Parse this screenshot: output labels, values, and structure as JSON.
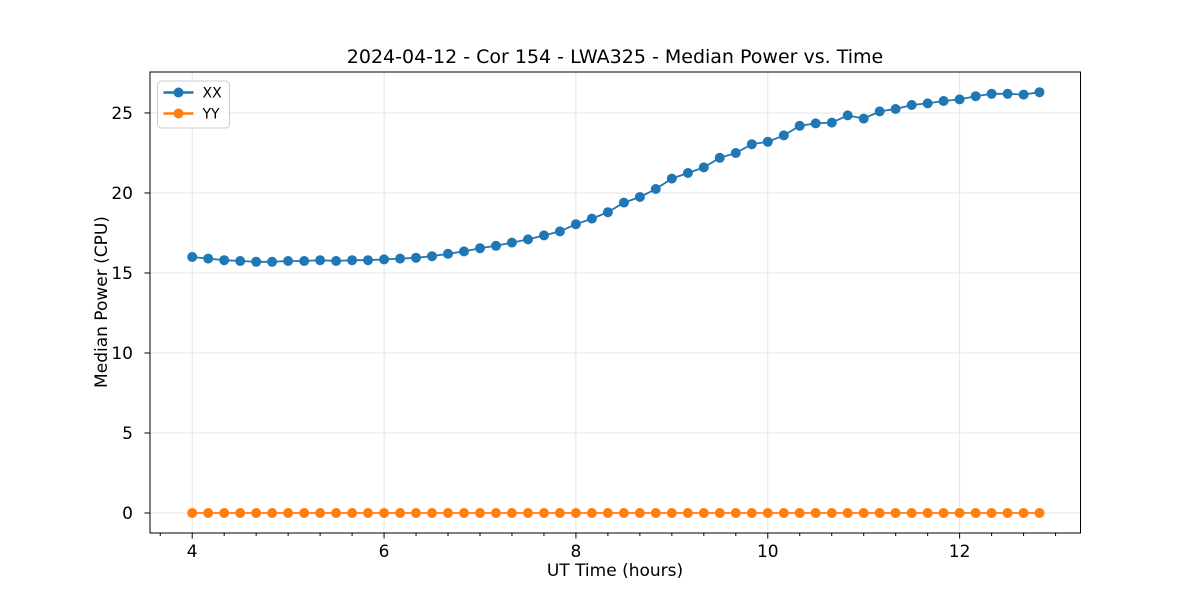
{
  "window": {
    "background": "#ffffff"
  },
  "chart_data": {
    "type": "line",
    "title": "2024-04-12 - Cor 154 - LWA325 - Median Power vs. Time",
    "xlabel": "UT Time (hours)",
    "ylabel": "Median Power (CPU)",
    "xlim": [
      3.56,
      13.26
    ],
    "ylim": [
      -1.25,
      27.56
    ],
    "x_ticks": [
      4,
      6,
      8,
      10,
      12
    ],
    "x_minor_tick_step": 0.33333,
    "y_ticks": [
      0,
      5,
      10,
      15,
      20,
      25
    ],
    "grid": true,
    "legend": {
      "position": "upper left",
      "entries": [
        "XX",
        "YY"
      ]
    },
    "x": [
      4.0,
      4.167,
      4.333,
      4.5,
      4.667,
      4.833,
      5.0,
      5.167,
      5.333,
      5.5,
      5.667,
      5.833,
      6.0,
      6.167,
      6.333,
      6.5,
      6.667,
      6.833,
      7.0,
      7.167,
      7.333,
      7.5,
      7.667,
      7.833,
      8.0,
      8.167,
      8.333,
      8.5,
      8.667,
      8.833,
      9.0,
      9.167,
      9.333,
      9.5,
      9.667,
      9.833,
      10.0,
      10.167,
      10.333,
      10.5,
      10.667,
      10.833,
      11.0,
      11.167,
      11.333,
      11.5,
      11.667,
      11.833,
      12.0,
      12.167,
      12.333,
      12.5,
      12.667,
      12.833
    ],
    "series": [
      {
        "name": "XX",
        "color": "#1f77b4",
        "values": [
          16.0,
          15.9,
          15.8,
          15.75,
          15.7,
          15.7,
          15.75,
          15.75,
          15.8,
          15.75,
          15.8,
          15.8,
          15.85,
          15.9,
          15.95,
          16.05,
          16.2,
          16.35,
          16.55,
          16.7,
          16.9,
          17.1,
          17.35,
          17.6,
          18.05,
          18.4,
          18.8,
          19.4,
          19.75,
          20.25,
          20.9,
          21.25,
          21.6,
          22.2,
          22.5,
          23.05,
          23.2,
          23.6,
          24.2,
          24.35,
          24.4,
          24.85,
          24.65,
          25.1,
          25.25,
          25.5,
          25.6,
          25.75,
          25.85,
          26.05,
          26.2,
          26.2,
          26.15,
          26.3
        ]
      },
      {
        "name": "YY",
        "color": "#ff7f0e",
        "values": [
          0.0,
          0.0,
          0.0,
          0.0,
          0.0,
          0.0,
          0.0,
          0.0,
          0.0,
          0.0,
          0.0,
          0.0,
          0.0,
          0.0,
          0.0,
          0.0,
          0.0,
          0.0,
          0.0,
          0.0,
          0.0,
          0.0,
          0.0,
          0.0,
          0.0,
          0.0,
          0.0,
          0.0,
          0.0,
          0.0,
          0.0,
          0.0,
          0.0,
          0.0,
          0.0,
          0.0,
          0.0,
          0.0,
          0.0,
          0.0,
          0.0,
          0.0,
          0.0,
          0.0,
          0.0,
          0.0,
          0.0,
          0.0,
          0.0,
          0.0,
          0.0,
          0.0,
          0.0,
          0.0
        ]
      }
    ],
    "styles": {
      "grid_color": "#e5e5e5",
      "spine_color": "#000000",
      "text_color": "#000000",
      "legend_border_color": "#cccccc",
      "marker_radius": 5,
      "line_width": 1.8
    }
  }
}
